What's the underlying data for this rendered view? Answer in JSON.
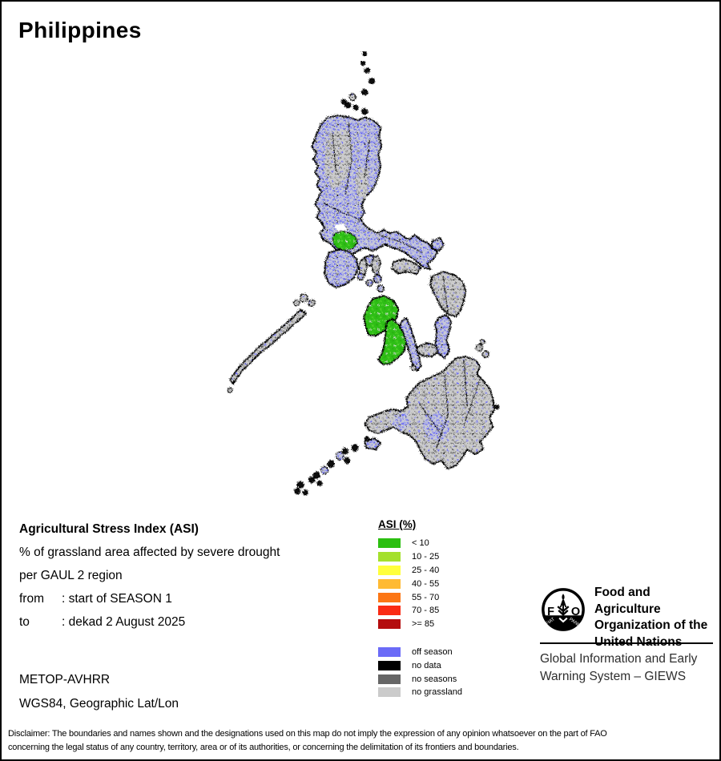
{
  "title": "Philippines",
  "info": {
    "asi_title": "Agricultural Stress Index (ASI)",
    "desc1": "% of grassland area affected by severe drought",
    "desc2": "per GAUL 2 region",
    "from_label": "from",
    "from_value": ": start of SEASON 1",
    "to_label": "to",
    "to_value": ": dekad 2 August 2025",
    "sensor": "METOP-AVHRR",
    "projection": "WGS84, Geographic Lat/Lon"
  },
  "legend": {
    "title": "ASI (%)",
    "classes": [
      {
        "label": "< 10",
        "color": "#2bbf10"
      },
      {
        "label": "10 - 25",
        "color": "#a4e02c"
      },
      {
        "label": "25 - 40",
        "color": "#ffff3c"
      },
      {
        "label": "40 - 55",
        "color": "#ffba33"
      },
      {
        "label": "55 - 70",
        "color": "#fc7615"
      },
      {
        "label": "70 - 85",
        "color": "#fa2b14"
      },
      {
        "label": ">= 85",
        "color": "#b40d0e"
      }
    ],
    "extra": [
      {
        "label": "off season",
        "color": "#6b6bf7"
      },
      {
        "label": "no data",
        "color": "#000000"
      },
      {
        "label": "no seasons",
        "color": "#666666"
      },
      {
        "label": "no grassland",
        "color": "#cbcbcb"
      }
    ]
  },
  "fao": {
    "logo_letters": [
      "F",
      "A",
      "O"
    ],
    "motto": [
      "FIAT",
      "PANIS"
    ],
    "org_lines": [
      "Food and Agriculture",
      "Organization of the",
      "United Nations"
    ],
    "giews_lines": [
      "Global Information and Early",
      "Warning System – GIEWS"
    ]
  },
  "disclaimer": [
    "Disclaimer: The boundaries and names shown and the designations used on this map do not imply the expression of any opinion whatsoever on the part of FAO",
    "concerning the legal status of any country, territory, area or of its authorities, or concerning the delimitation of its frontiers and boundaries."
  ],
  "map_colors": {
    "off_season": "#6b6bf7",
    "no_data": "#000000",
    "no_seasons": "#666666",
    "no_grassland": "#cbcbcb",
    "asi_low": "#2fbe12"
  }
}
